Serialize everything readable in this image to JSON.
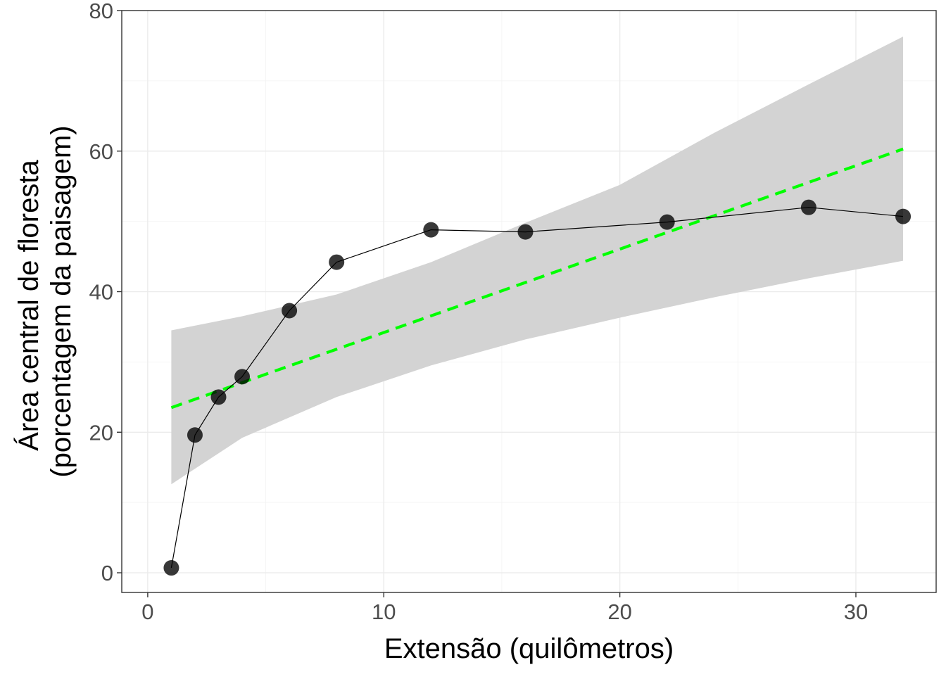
{
  "chart_data": {
    "type": "scatter",
    "title": "",
    "xlabel": "Extensão (quilômetros)",
    "ylabel_lines": [
      "Área central de floresta",
      "(porcentagem da paisagem)"
    ],
    "xlim": [
      -1.1,
      33.4
    ],
    "ylim": [
      -2.8,
      80
    ],
    "x_ticks": [
      0,
      10,
      20,
      30
    ],
    "y_ticks": [
      0,
      20,
      40,
      60,
      80
    ],
    "grid": true,
    "legend": "none",
    "series": [
      {
        "kind": "observed",
        "x": [
          1,
          2,
          3,
          4,
          6,
          8,
          12,
          16,
          22,
          28,
          32
        ],
        "y": [
          0.7,
          19.6,
          25.0,
          27.9,
          37.3,
          44.2,
          48.8,
          48.5,
          49.9,
          52.0,
          50.7
        ],
        "color": "#000000"
      },
      {
        "kind": "linear-fit",
        "x": [
          1,
          32
        ],
        "y": [
          23.5,
          60.3
        ],
        "color": "#00ff00",
        "dashed": true
      },
      {
        "kind": "confidence-band",
        "x": [
          1,
          4,
          8,
          12,
          16,
          20,
          24,
          28,
          32
        ],
        "lower": [
          12.6,
          19.2,
          25.0,
          29.5,
          33.2,
          36.3,
          39.2,
          41.9,
          44.4
        ],
        "upper": [
          34.5,
          36.5,
          39.6,
          44.2,
          49.8,
          55.2,
          62.6,
          69.5,
          76.3
        ],
        "color": "#d3d3d3"
      }
    ]
  }
}
